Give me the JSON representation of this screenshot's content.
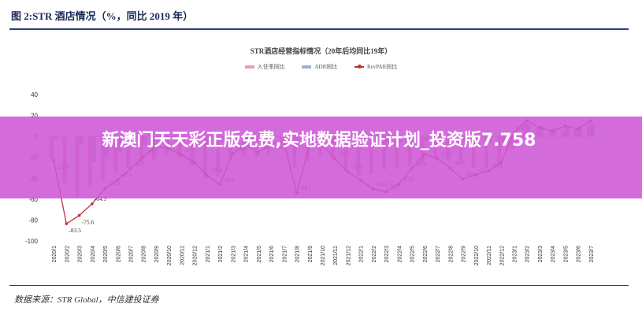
{
  "figure_title": "图 2:STR 酒店情况（%，同比 2019 年）",
  "source": "数据来源：STR Global，中信建投证券",
  "banner": "新澳门天天彩正版免费,实地数据验证计划_投资版7.758",
  "chart_data": {
    "type": "bar+line",
    "title": "STR酒店经营指标情况（20年后均同比19年）",
    "legend_position": "top-center",
    "grid": false,
    "ylim": [
      -100,
      40
    ],
    "yticks": [
      40,
      20,
      0,
      -20,
      -40,
      -60,
      -80,
      -100
    ],
    "categories": [
      "2020/1",
      "2020/2",
      "2020/3",
      "2020/4",
      "2020/5",
      "2020/6",
      "2020/7",
      "2020/8",
      "2020/9",
      "2020/10",
      "2020/11",
      "2020/12",
      "2021/1",
      "2021/2",
      "2021/3",
      "2021/4",
      "2021/5",
      "2021/6",
      "2021/7",
      "2021/8",
      "2021/9",
      "2021/10",
      "2021/11",
      "2021/12",
      "2022/1",
      "2022/2",
      "2022/3",
      "2022/4",
      "2022/5",
      "2022/6",
      "2022/7",
      "2022/8",
      "2022/9",
      "2022/10",
      "2022/11",
      "2022/12",
      "2023/1",
      "2023/2",
      "2023/3",
      "2023/4",
      "2023/5",
      "2023/6",
      "2023/7"
    ],
    "series": [
      {
        "name": "入住率同比",
        "kind": "bar",
        "color": "#e8a0a6",
        "values": [
          -22,
          -45,
          -58,
          -48,
          -42,
          -35,
          -30,
          -25,
          -22,
          -17,
          -20,
          -28,
          -40,
          -38,
          -22,
          -18,
          -20,
          -17,
          -12,
          -30,
          -24,
          -20,
          -22,
          -33,
          -38,
          -36,
          -32,
          -30,
          -28,
          -25,
          -22,
          -23,
          -26,
          -30,
          -30,
          -28,
          -12,
          12,
          8,
          5,
          6,
          8,
          10
        ]
      },
      {
        "name": "ADR同比",
        "kind": "bar",
        "color": "#9fb0d8",
        "values": [
          -3,
          0,
          -8,
          -25,
          -20,
          -15,
          -10,
          -8,
          -5,
          -3,
          -5,
          -8,
          -10,
          -5,
          -5,
          -3,
          -4,
          -3,
          -2,
          -8,
          -6,
          -4,
          -5,
          -6,
          -10,
          -8,
          -6,
          -6,
          -5,
          -4,
          -3,
          -4,
          -5,
          -6,
          -6,
          -5,
          5,
          12,
          10,
          8,
          9,
          10,
          12
        ]
      },
      {
        "name": "RevPAR同比",
        "kind": "line",
        "color": "#c0303a",
        "values": [
          -22.9,
          -83.5,
          -75.6,
          -64.5,
          -50.0,
          -41.5,
          -31.1,
          -19.5,
          -10.2,
          -11.2,
          -17.7,
          -25.0,
          -37.4,
          -46.0,
          -16.6,
          -7.9,
          -15.3,
          -7.0,
          -5.0,
          -54.1,
          -9.8,
          -8.0,
          -21.2,
          -33.9,
          -42.0,
          -50.2,
          -52.9,
          -45.6,
          -30.6,
          -17.0,
          -21.3,
          -30.3,
          -40.9,
          -37.0,
          -33.1,
          -25.0,
          3.1,
          15.0,
          8.0,
          5.0,
          10.0,
          7.0,
          15.0
        ]
      }
    ],
    "data_labels": [
      {
        "index": 0,
        "text": "-22.9"
      },
      {
        "index": 1,
        "text": "-83.5"
      },
      {
        "index": 2,
        "text": "-75.6"
      },
      {
        "index": 3,
        "text": "-64.5"
      },
      {
        "index": 4,
        "text": "-50.0"
      },
      {
        "index": 5,
        "text": "-41.5"
      },
      {
        "index": 6,
        "text": "-31.1"
      },
      {
        "index": 7,
        "text": "-19.5"
      },
      {
        "index": 8,
        "text": "-10.2"
      },
      {
        "index": 10,
        "text": "-17.7"
      },
      {
        "index": 12,
        "text": "-37.4"
      },
      {
        "index": 13,
        "text": "-46.0"
      },
      {
        "index": 14,
        "text": "-16.6"
      },
      {
        "index": 15,
        "text": "-7.9"
      },
      {
        "index": 16,
        "text": "-15.3"
      },
      {
        "index": 19,
        "text": "-54.1"
      },
      {
        "index": 22,
        "text": "-21.2"
      },
      {
        "index": 23,
        "text": "-33.9"
      },
      {
        "index": 25,
        "text": "-50.2"
      },
      {
        "index": 26,
        "text": "-52.9"
      },
      {
        "index": 27,
        "text": "-45.6"
      },
      {
        "index": 28,
        "text": "-30.6"
      },
      {
        "index": 30,
        "text": "-21.3"
      },
      {
        "index": 31,
        "text": "-30.3"
      },
      {
        "index": 32,
        "text": "-40.9"
      },
      {
        "index": 33,
        "text": "-37"
      },
      {
        "index": 34,
        "text": "-33.1"
      },
      {
        "index": 36,
        "text": "3.1"
      }
    ]
  }
}
